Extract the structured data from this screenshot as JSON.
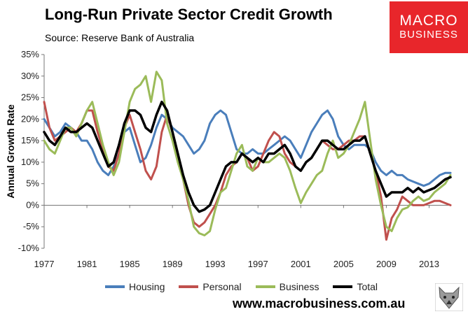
{
  "header": {
    "title": "Long-Run Private Sector Credit Growth",
    "subtitle": "Source: Reserve Bank of Australia"
  },
  "logo": {
    "line1": "MACRO",
    "line2": "BUSINESS"
  },
  "footer": {
    "website": "www.macrobusiness.com.au",
    "mascot_icon": "fox-icon"
  },
  "chart_data": {
    "type": "line",
    "title": "Long-Run Private Sector Credit Growth",
    "ylabel": "Annual Growth Rate",
    "xlabel": "",
    "xlim": [
      1977,
      2015
    ],
    "ylim": [
      -10,
      35
    ],
    "x_ticks": [
      1977,
      1981,
      1985,
      1989,
      1993,
      1997,
      2001,
      2005,
      2009,
      2013
    ],
    "x_tick_labels": [
      "1977",
      "1981",
      "1985",
      "1989",
      "1993",
      "1997",
      "2001",
      "2005",
      "2009",
      "2013"
    ],
    "y_ticks": [
      35,
      30,
      25,
      20,
      15,
      10,
      5,
      0,
      -5,
      -10
    ],
    "y_tick_labels": [
      "35%",
      "30%",
      "25%",
      "20%",
      "15%",
      "10%",
      "5%",
      "0%",
      "-5%",
      "-10%"
    ],
    "grid": false,
    "legend_position": "bottom",
    "series": [
      {
        "name": "Housing",
        "color": "#4a7ebb",
        "points": [
          [
            1977,
            20
          ],
          [
            1977.5,
            18
          ],
          [
            1978,
            16
          ],
          [
            1978.5,
            17
          ],
          [
            1979,
            19
          ],
          [
            1979.5,
            18
          ],
          [
            1980,
            17
          ],
          [
            1980.5,
            15
          ],
          [
            1981,
            15
          ],
          [
            1981.5,
            13
          ],
          [
            1982,
            10
          ],
          [
            1982.5,
            8
          ],
          [
            1983,
            7
          ],
          [
            1983.5,
            9
          ],
          [
            1984,
            12
          ],
          [
            1984.5,
            17
          ],
          [
            1985,
            18
          ],
          [
            1985.5,
            14
          ],
          [
            1986,
            10
          ],
          [
            1986.5,
            11
          ],
          [
            1987,
            14
          ],
          [
            1987.5,
            18
          ],
          [
            1988,
            21
          ],
          [
            1988.5,
            20
          ],
          [
            1989,
            18
          ],
          [
            1989.5,
            17
          ],
          [
            1990,
            16
          ],
          [
            1990.5,
            14
          ],
          [
            1991,
            12
          ],
          [
            1991.5,
            13
          ],
          [
            1992,
            15
          ],
          [
            1992.5,
            19
          ],
          [
            1993,
            21
          ],
          [
            1993.5,
            22
          ],
          [
            1994,
            21
          ],
          [
            1994.5,
            17
          ],
          [
            1995,
            13
          ],
          [
            1995.5,
            12
          ],
          [
            1996,
            12
          ],
          [
            1996.5,
            13
          ],
          [
            1997,
            12
          ],
          [
            1997.5,
            12
          ],
          [
            1998,
            13
          ],
          [
            1998.5,
            14
          ],
          [
            1999,
            15
          ],
          [
            1999.5,
            16
          ],
          [
            2000,
            15
          ],
          [
            2000.5,
            13
          ],
          [
            2001,
            11
          ],
          [
            2001.5,
            14
          ],
          [
            2002,
            17
          ],
          [
            2002.5,
            19
          ],
          [
            2003,
            21
          ],
          [
            2003.5,
            22
          ],
          [
            2004,
            20
          ],
          [
            2004.5,
            16
          ],
          [
            2005,
            14
          ],
          [
            2005.5,
            13
          ],
          [
            2006,
            14
          ],
          [
            2006.5,
            14
          ],
          [
            2007,
            14
          ],
          [
            2007.5,
            13
          ],
          [
            2008,
            10
          ],
          [
            2008.5,
            8
          ],
          [
            2009,
            7
          ],
          [
            2009.5,
            8
          ],
          [
            2010,
            7
          ],
          [
            2010.5,
            7
          ],
          [
            2011,
            6
          ],
          [
            2011.5,
            5.5
          ],
          [
            2012,
            5
          ],
          [
            2012.5,
            4.5
          ],
          [
            2013,
            5
          ],
          [
            2013.5,
            6
          ],
          [
            2014,
            7
          ],
          [
            2014.5,
            7.5
          ],
          [
            2015,
            7.5
          ]
        ]
      },
      {
        "name": "Personal",
        "color": "#c0504d",
        "points": [
          [
            1977,
            24
          ],
          [
            1977.5,
            18
          ],
          [
            1978,
            15
          ],
          [
            1978.5,
            16
          ],
          [
            1979,
            17
          ],
          [
            1979.5,
            18
          ],
          [
            1980,
            17
          ],
          [
            1980.5,
            19
          ],
          [
            1981,
            22
          ],
          [
            1981.5,
            22
          ],
          [
            1982,
            17
          ],
          [
            1982.5,
            13
          ],
          [
            1983,
            9
          ],
          [
            1983.5,
            8
          ],
          [
            1984,
            12
          ],
          [
            1984.5,
            18
          ],
          [
            1985,
            21
          ],
          [
            1985.5,
            17
          ],
          [
            1986,
            13
          ],
          [
            1986.5,
            8
          ],
          [
            1987,
            6
          ],
          [
            1987.5,
            9
          ],
          [
            1988,
            17
          ],
          [
            1988.5,
            21
          ],
          [
            1989,
            17
          ],
          [
            1989.5,
            11
          ],
          [
            1990,
            6
          ],
          [
            1990.5,
            0
          ],
          [
            1991,
            -4
          ],
          [
            1991.5,
            -5
          ],
          [
            1992,
            -4
          ],
          [
            1992.5,
            -2
          ],
          [
            1993,
            0
          ],
          [
            1993.5,
            3
          ],
          [
            1994,
            7
          ],
          [
            1994.5,
            9
          ],
          [
            1995,
            10
          ],
          [
            1995.5,
            12
          ],
          [
            1996,
            11
          ],
          [
            1996.5,
            8
          ],
          [
            1997,
            9
          ],
          [
            1997.5,
            12
          ],
          [
            1998,
            15
          ],
          [
            1998.5,
            17
          ],
          [
            1999,
            16
          ],
          [
            1999.5,
            12
          ],
          [
            2000,
            10
          ],
          [
            2000.5,
            9
          ],
          [
            2001,
            8
          ],
          [
            2001.5,
            10
          ],
          [
            2002,
            11
          ],
          [
            2002.5,
            13
          ],
          [
            2003,
            15
          ],
          [
            2003.5,
            14
          ],
          [
            2004,
            13
          ],
          [
            2004.5,
            13
          ],
          [
            2005,
            14
          ],
          [
            2005.5,
            15
          ],
          [
            2006,
            15
          ],
          [
            2006.5,
            16
          ],
          [
            2007,
            16
          ],
          [
            2007.5,
            12
          ],
          [
            2008,
            8
          ],
          [
            2008.5,
            2
          ],
          [
            2009,
            -8
          ],
          [
            2009.5,
            -3
          ],
          [
            2010,
            -1
          ],
          [
            2010.5,
            2
          ],
          [
            2011,
            1
          ],
          [
            2011.5,
            0
          ],
          [
            2012,
            0
          ],
          [
            2012.5,
            0
          ],
          [
            2013,
            0.5
          ],
          [
            2013.5,
            1
          ],
          [
            2014,
            1
          ],
          [
            2014.5,
            0.5
          ],
          [
            2015,
            0
          ]
        ]
      },
      {
        "name": "Business",
        "color": "#9bbb59",
        "points": [
          [
            1977,
            15
          ],
          [
            1977.5,
            13
          ],
          [
            1978,
            12
          ],
          [
            1978.5,
            15
          ],
          [
            1979,
            18
          ],
          [
            1979.5,
            18
          ],
          [
            1980,
            16
          ],
          [
            1980.5,
            19
          ],
          [
            1981,
            22
          ],
          [
            1981.5,
            24
          ],
          [
            1982,
            19
          ],
          [
            1982.5,
            14
          ],
          [
            1983,
            10
          ],
          [
            1983.5,
            7
          ],
          [
            1984,
            10
          ],
          [
            1984.5,
            17
          ],
          [
            1985,
            24
          ],
          [
            1985.5,
            27
          ],
          [
            1986,
            28
          ],
          [
            1986.5,
            30
          ],
          [
            1987,
            24
          ],
          [
            1987.5,
            31
          ],
          [
            1988,
            29
          ],
          [
            1988.5,
            19
          ],
          [
            1989,
            15
          ],
          [
            1989.5,
            10
          ],
          [
            1990,
            6
          ],
          [
            1990.5,
            1
          ],
          [
            1991,
            -5
          ],
          [
            1991.5,
            -6.5
          ],
          [
            1992,
            -7
          ],
          [
            1992.5,
            -6
          ],
          [
            1993,
            -1
          ],
          [
            1993.5,
            3
          ],
          [
            1994,
            4
          ],
          [
            1994.5,
            8
          ],
          [
            1995,
            12
          ],
          [
            1995.5,
            14
          ],
          [
            1996,
            9
          ],
          [
            1996.5,
            8
          ],
          [
            1997,
            11
          ],
          [
            1997.5,
            10
          ],
          [
            1998,
            10
          ],
          [
            1998.5,
            11
          ],
          [
            1999,
            12
          ],
          [
            1999.5,
            11
          ],
          [
            2000,
            8
          ],
          [
            2000.5,
            4
          ],
          [
            2001,
            0.5
          ],
          [
            2001.5,
            3
          ],
          [
            2002,
            5
          ],
          [
            2002.5,
            7
          ],
          [
            2003,
            8
          ],
          [
            2003.5,
            12
          ],
          [
            2004,
            15
          ],
          [
            2004.5,
            11
          ],
          [
            2005,
            12
          ],
          [
            2005.5,
            14
          ],
          [
            2006,
            17
          ],
          [
            2006.5,
            20
          ],
          [
            2007,
            24
          ],
          [
            2007.5,
            15
          ],
          [
            2008,
            6
          ],
          [
            2008.5,
            0
          ],
          [
            2009,
            -5
          ],
          [
            2009.5,
            -6
          ],
          [
            2010,
            -3
          ],
          [
            2010.5,
            -1
          ],
          [
            2011,
            -0.5
          ],
          [
            2011.5,
            1
          ],
          [
            2012,
            2
          ],
          [
            2012.5,
            1
          ],
          [
            2013,
            1.5
          ],
          [
            2013.5,
            3
          ],
          [
            2014,
            4
          ],
          [
            2014.5,
            5
          ],
          [
            2015,
            7
          ]
        ]
      },
      {
        "name": "Total",
        "color": "#000000",
        "points": [
          [
            1977,
            17
          ],
          [
            1977.5,
            15
          ],
          [
            1978,
            14
          ],
          [
            1978.5,
            16
          ],
          [
            1979,
            18
          ],
          [
            1979.5,
            17
          ],
          [
            1980,
            17
          ],
          [
            1980.5,
            18
          ],
          [
            1981,
            19
          ],
          [
            1981.5,
            18
          ],
          [
            1982,
            15
          ],
          [
            1982.5,
            12
          ],
          [
            1983,
            9
          ],
          [
            1983.5,
            10
          ],
          [
            1984,
            14
          ],
          [
            1984.5,
            19
          ],
          [
            1985,
            22
          ],
          [
            1985.5,
            22
          ],
          [
            1986,
            21
          ],
          [
            1986.5,
            18
          ],
          [
            1987,
            17
          ],
          [
            1987.5,
            21
          ],
          [
            1988,
            24
          ],
          [
            1988.5,
            22
          ],
          [
            1989,
            17
          ],
          [
            1989.5,
            12
          ],
          [
            1990,
            7
          ],
          [
            1990.5,
            3
          ],
          [
            1991,
            0
          ],
          [
            1991.5,
            -1.5
          ],
          [
            1992,
            -1
          ],
          [
            1992.5,
            0
          ],
          [
            1993,
            3
          ],
          [
            1993.5,
            6
          ],
          [
            1994,
            9
          ],
          [
            1994.5,
            10
          ],
          [
            1995,
            10
          ],
          [
            1995.5,
            12
          ],
          [
            1996,
            11
          ],
          [
            1996.5,
            10
          ],
          [
            1997,
            11
          ],
          [
            1997.5,
            10
          ],
          [
            1998,
            12
          ],
          [
            1998.5,
            12
          ],
          [
            1999,
            13
          ],
          [
            1999.5,
            14
          ],
          [
            2000,
            12
          ],
          [
            2000.5,
            9
          ],
          [
            2001,
            8
          ],
          [
            2001.5,
            10
          ],
          [
            2002,
            11
          ],
          [
            2002.5,
            13
          ],
          [
            2003,
            15
          ],
          [
            2003.5,
            15
          ],
          [
            2004,
            14
          ],
          [
            2004.5,
            13
          ],
          [
            2005,
            13
          ],
          [
            2005.5,
            14
          ],
          [
            2006,
            15
          ],
          [
            2006.5,
            15
          ],
          [
            2007,
            16
          ],
          [
            2007.5,
            12
          ],
          [
            2008,
            8
          ],
          [
            2008.5,
            5
          ],
          [
            2009,
            2
          ],
          [
            2009.5,
            3
          ],
          [
            2010,
            3
          ],
          [
            2010.5,
            3
          ],
          [
            2011,
            4
          ],
          [
            2011.5,
            3
          ],
          [
            2012,
            4
          ],
          [
            2012.5,
            3
          ],
          [
            2013,
            3.5
          ],
          [
            2013.5,
            4
          ],
          [
            2014,
            5
          ],
          [
            2014.5,
            6
          ],
          [
            2015,
            6.5
          ]
        ]
      }
    ]
  }
}
